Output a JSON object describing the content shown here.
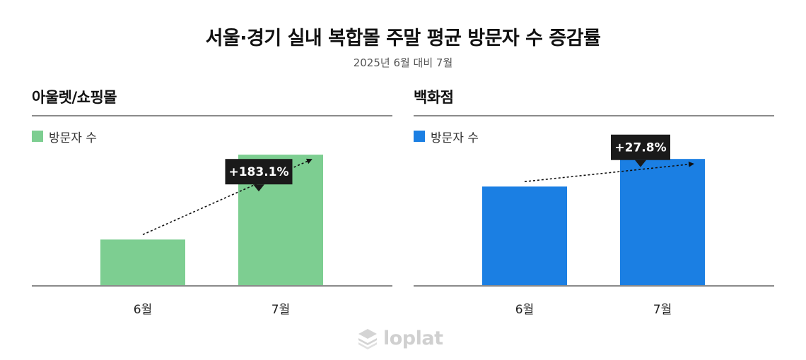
{
  "title": "서울·경기 실내 복합몰 주말 평균 방문자 수 증감률",
  "subtitle": "2025년 6월 대비 7월",
  "brand": "loplat",
  "brand_icon": "stacked-layers-icon",
  "chart_data": [
    {
      "type": "bar",
      "title": "아울렛/쇼핑몰",
      "categories": [
        "6월",
        "7월"
      ],
      "series": [
        {
          "name": "방문자 수",
          "values": [
            100,
            283.1
          ]
        }
      ],
      "change_label": "+183.1%",
      "ylim": [
        0,
        300
      ],
      "color": "#7dce91",
      "grid": false,
      "legend": "top-left"
    },
    {
      "type": "bar",
      "title": "백화점",
      "categories": [
        "6월",
        "7월"
      ],
      "series": [
        {
          "name": "방문자 수",
          "values": [
            100,
            127.8
          ]
        }
      ],
      "change_label": "+27.8%",
      "ylim": [
        0,
        140
      ],
      "color": "#1b7fe3",
      "grid": false,
      "legend": "top-left"
    }
  ]
}
